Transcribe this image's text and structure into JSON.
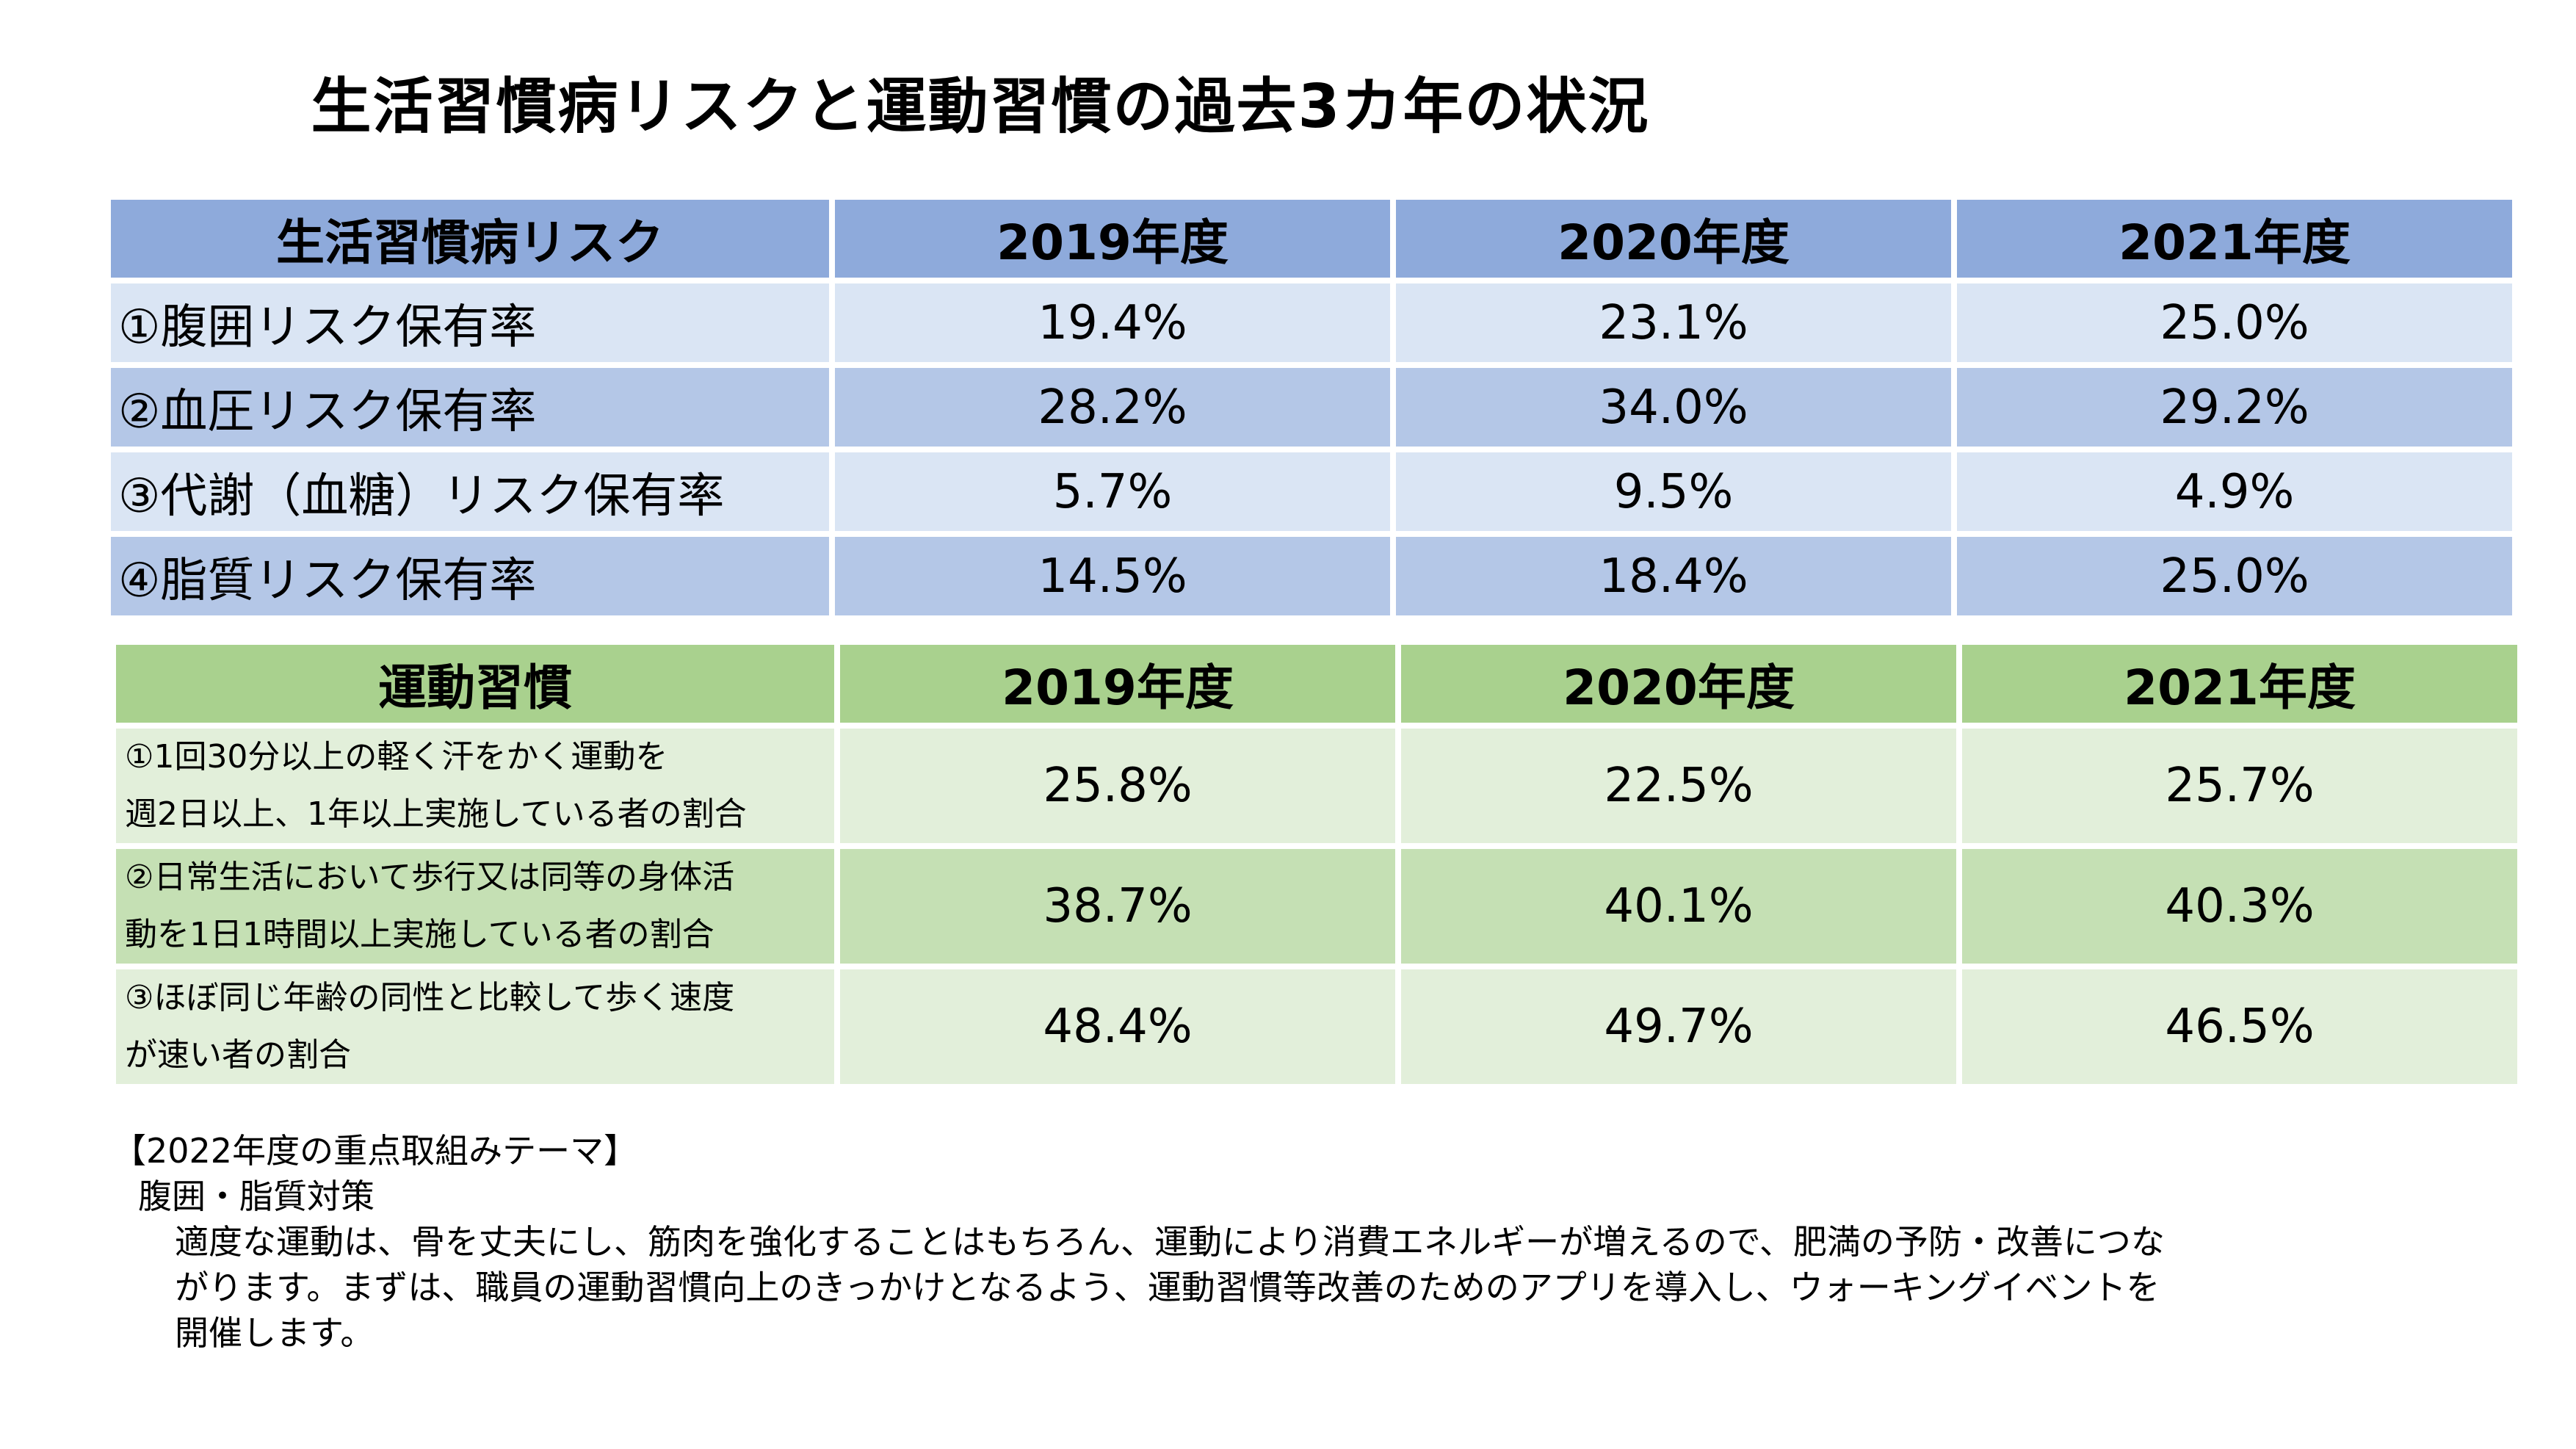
{
  "title": "生活習慣病リスクと運動習慣の過去3カ年の状況",
  "risk_table": {
    "headers": [
      "生活習慣病リスク",
      "2019年度",
      "2020年度",
      "2021年度"
    ],
    "rows": [
      {
        "label": "①腹囲リスク保有率",
        "values": [
          "19.4%",
          "23.1%",
          "25.0%"
        ]
      },
      {
        "label": "②血圧リスク保有率",
        "values": [
          "28.2%",
          "34.0%",
          "29.2%"
        ]
      },
      {
        "label": "③代謝（血糖）リスク保有率",
        "values": [
          "5.7%",
          "9.5%",
          "4.9%"
        ]
      },
      {
        "label": "④脂質リスク保有率",
        "values": [
          "14.5%",
          "18.4%",
          "25.0%"
        ]
      }
    ]
  },
  "exercise_table": {
    "headers": [
      "運動習慣",
      "2019年度",
      "2020年度",
      "2021年度"
    ],
    "rows": [
      {
        "label_line1": "①1回30分以上の軽く汗をかく運動を",
        "label_line2": "週2日以上、1年以上実施している者の割合",
        "values": [
          "25.8%",
          "22.5%",
          "25.7%"
        ]
      },
      {
        "label_line1": "②日常生活において歩行又は同等の身体活",
        "label_line2": "動を1日1時間以上実施している者の割合",
        "values": [
          "38.7%",
          "40.1%",
          "40.3%"
        ]
      },
      {
        "label_line1": "③ほぼ同じ年齢の同性と比較して歩く速度",
        "label_line2": "が速い者の割合",
        "values": [
          "48.4%",
          "49.7%",
          "46.5%"
        ]
      }
    ]
  },
  "notes": {
    "heading": "【2022年度の重点取組みテーマ】",
    "theme": "腹囲・脂質対策",
    "body_line1": "適度な運動は、骨を丈夫にし、筋肉を強化することはもちろん、運動により消費エネルギーが増えるので、肥満の予防・改善につな",
    "body_line2": "がります。まずは、職員の運動習慣向上のきっかけとなるよう、運動習慣等改善のためのアプリを導入し、ウォーキングイベントを",
    "body_line3": "開催します。"
  },
  "colors": {
    "risk_header": "#8eaadb",
    "risk_row_light": "#dae5f4",
    "risk_row_dark": "#b4c7e7",
    "exercise_header": "#a9d18e",
    "exercise_row_light": "#e2efda",
    "exercise_row_dark": "#c5e0b4"
  }
}
